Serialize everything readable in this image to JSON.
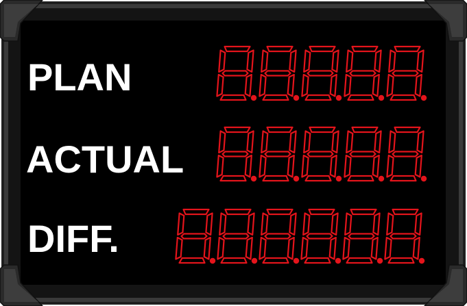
{
  "board": {
    "frame_color": "#2b2b2b",
    "panel_color": "#000000",
    "segment_on_color": "#e4141b",
    "segment_off_color": "#3a0606",
    "rows": [
      {
        "label": "PLAN",
        "digit_count": 5
      },
      {
        "label": "ACTUAL",
        "digit_count": 5
      },
      {
        "label": "DIFF.",
        "digit_count": 6
      }
    ]
  }
}
